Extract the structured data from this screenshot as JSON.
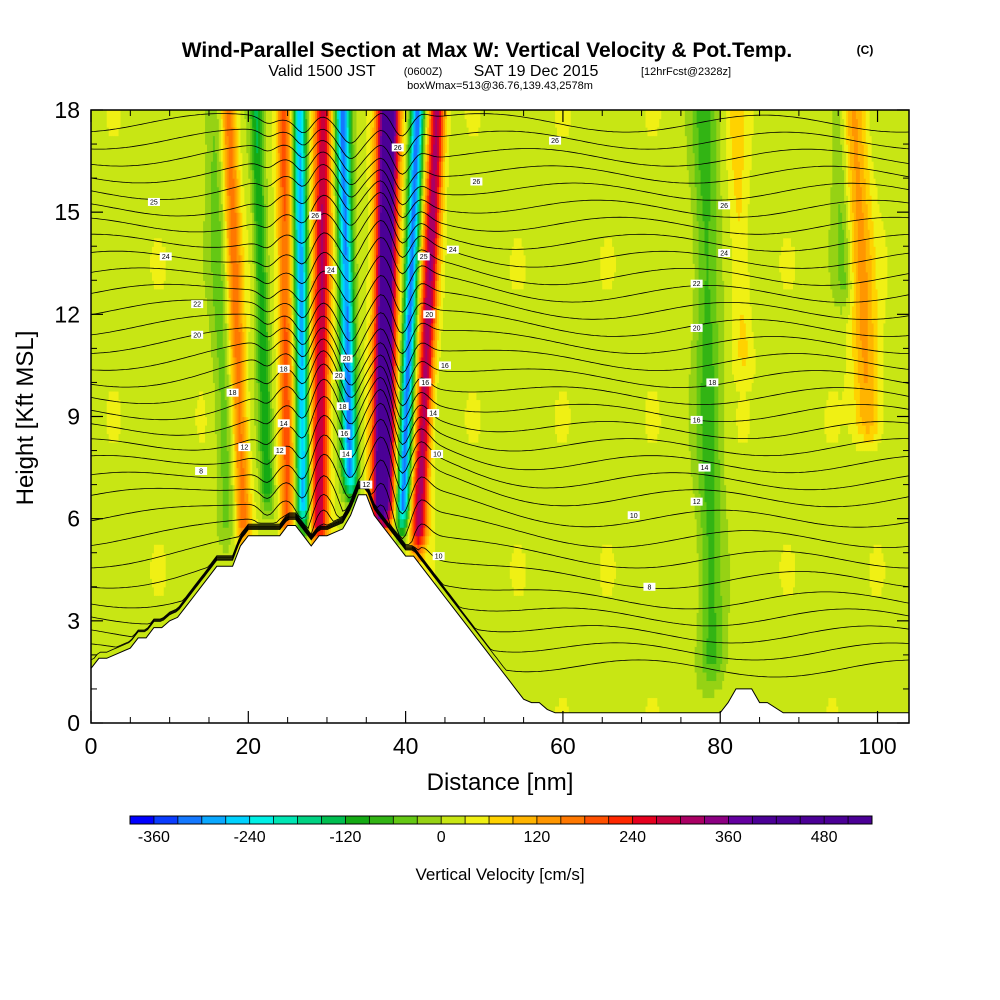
{
  "chart_data": {
    "type": "heatmap",
    "title": "Wind-Parallel Section at Max W: Vertical Velocity & Pot.Temp.",
    "title_mark": "(C)",
    "subtitle": {
      "valid": "Valid 1500 JST",
      "utc": "(0600Z)",
      "date": "SAT 19 Dec 2015",
      "fcst": "[12hrFcst@2328z]"
    },
    "box_info": "boxWmax=513@36.76,139.43,2578m",
    "xlabel": "Distance [nm]",
    "ylabel": "Height [Kft MSL]",
    "xlim": [
      0,
      104
    ],
    "ylim": [
      0,
      18
    ],
    "x_ticks": [
      0,
      20,
      40,
      60,
      80,
      100
    ],
    "y_ticks": [
      0,
      3,
      6,
      9,
      12,
      15,
      18
    ],
    "colorbar": {
      "label": "Vertical Velocity [cm/s]",
      "min": -390,
      "max": 540,
      "step": 30,
      "tick_values": [
        -360,
        -240,
        -120,
        0,
        120,
        240,
        360,
        480
      ],
      "tick_labels": [
        "-360",
        "-240",
        "-120",
        "0",
        "120",
        "240",
        "360",
        "480"
      ],
      "colors": [
        "#0000ff",
        "#0a3cff",
        "#1478ff",
        "#0aa8ff",
        "#00d2ff",
        "#00f0e6",
        "#00e6b4",
        "#00d282",
        "#00be50",
        "#14aa14",
        "#32b414",
        "#64c814",
        "#96d214",
        "#c8e614",
        "#f0f014",
        "#ffd200",
        "#ffb400",
        "#ff9600",
        "#ff7800",
        "#ff5000",
        "#ff2800",
        "#e6001e",
        "#c8003c",
        "#aa0064",
        "#8c0082",
        "#6400a0",
        "#4b0096"
      ]
    },
    "terrain_kft": {
      "x": [
        0,
        1,
        2,
        5,
        6,
        7,
        8,
        9,
        10,
        11,
        12,
        13,
        14,
        15,
        16,
        17,
        18,
        19,
        20,
        21,
        22,
        23,
        24,
        25,
        26,
        27,
        28,
        29,
        30,
        31,
        32,
        33,
        34,
        35,
        36,
        37,
        38,
        39,
        40,
        41,
        42,
        43,
        44,
        45,
        46,
        47,
        48,
        49,
        50,
        51,
        52,
        53,
        54,
        55,
        56,
        57,
        58,
        59,
        60,
        61,
        70,
        78,
        80,
        81,
        82,
        83,
        84,
        85,
        86,
        88,
        90,
        95,
        100,
        104
      ],
      "h": [
        1.6,
        1.9,
        1.9,
        2.2,
        2.5,
        2.5,
        2.8,
        2.8,
        3.0,
        3.1,
        3.4,
        3.7,
        4.0,
        4.3,
        4.6,
        4.6,
        4.6,
        5.2,
        5.5,
        5.5,
        5.5,
        5.5,
        5.5,
        5.8,
        5.8,
        5.5,
        5.2,
        5.5,
        5.5,
        5.6,
        5.7,
        6.1,
        6.7,
        6.7,
        6.1,
        5.8,
        5.5,
        5.2,
        4.9,
        4.9,
        4.6,
        4.3,
        4.0,
        3.7,
        3.4,
        3.1,
        2.8,
        2.5,
        2.2,
        1.9,
        1.6,
        1.3,
        1.0,
        0.7,
        0.6,
        0.6,
        0.4,
        0.3,
        0.3,
        0.3,
        0.3,
        0.3,
        0.3,
        0.6,
        1.0,
        1.0,
        1.0,
        0.6,
        0.6,
        0.3,
        0.3,
        0.3,
        0.3,
        0.3
      ]
    },
    "w_features": [
      {
        "x": 37.0,
        "w": 1.3,
        "amp": 520,
        "ylo": 5.5,
        "xtop": 37.8
      },
      {
        "x": 41.5,
        "w": 1.0,
        "amp": 300,
        "ylo": 4.8,
        "xtop": 44.0
      },
      {
        "x": 29.0,
        "w": 1.1,
        "amp": 280,
        "ylo": 5.0,
        "xtop": 29.5
      },
      {
        "x": 25.0,
        "w": 0.9,
        "amp": 170,
        "ylo": 5.0,
        "xtop": 24.5
      },
      {
        "x": 19.5,
        "w": 1.0,
        "amp": 150,
        "ylo": 5.0,
        "xtop": 17.5
      },
      {
        "x": 33.0,
        "w": 0.9,
        "amp": -330,
        "ylo": 6.5,
        "xtop": 32.0
      },
      {
        "x": 39.5,
        "w": 0.8,
        "amp": -340,
        "ylo": 5.5,
        "xtop": 41.5
      },
      {
        "x": 27.0,
        "w": 0.8,
        "amp": -300,
        "ylo": 5.5,
        "xtop": 26.5
      },
      {
        "x": 22.5,
        "w": 0.8,
        "amp": -130,
        "ylo": 6.0,
        "xtop": 21.0
      },
      {
        "x": 17.5,
        "w": 1.2,
        "amp": -60,
        "ylo": 5.0,
        "xtop": 15.5
      },
      {
        "x": 79.0,
        "w": 1.6,
        "amp": -90,
        "ylo": 1.0,
        "xtop": 78.0
      },
      {
        "x": 83.0,
        "w": 1.2,
        "amp": 50,
        "ylo": 10.0,
        "xtop": 82.0
      },
      {
        "x": 99.0,
        "w": 1.6,
        "amp": 110,
        "ylo": 8.0,
        "xtop": 97.0
      },
      {
        "x": 96.0,
        "w": 1.2,
        "amp": -60,
        "ylo": 12.0,
        "xtop": 95.0
      }
    ],
    "theta_contours": {
      "base_levels_kft": [
        1.6,
        2.1,
        2.6,
        3.1,
        3.6,
        4.2,
        4.8,
        5.4,
        6.0,
        6.6,
        7.1,
        7.6,
        8.1,
        8.6,
        9.1,
        9.6,
        10.1,
        10.6,
        11.1,
        11.6,
        12.1,
        12.6,
        13.1,
        13.6,
        14.1,
        14.6,
        15.1,
        15.6,
        16.1,
        16.6,
        17.1,
        17.6
      ],
      "labels": [
        {
          "text": "26",
          "x": 39,
          "y": 16.9
        },
        {
          "text": "26",
          "x": 59,
          "y": 17.1
        },
        {
          "text": "25",
          "x": 8,
          "y": 15.3
        },
        {
          "text": "24",
          "x": 9.5,
          "y": 13.7
        },
        {
          "text": "22",
          "x": 13.5,
          "y": 12.3
        },
        {
          "text": "20",
          "x": 13.5,
          "y": 11.4
        },
        {
          "text": "18",
          "x": 18,
          "y": 9.7
        },
        {
          "text": "12",
          "x": 19.5,
          "y": 8.1
        },
        {
          "text": "8",
          "x": 14,
          "y": 7.4
        },
        {
          "text": "18",
          "x": 24.5,
          "y": 10.4
        },
        {
          "text": "14",
          "x": 24.5,
          "y": 8.8
        },
        {
          "text": "12",
          "x": 24,
          "y": 8.0
        },
        {
          "text": "26",
          "x": 28.5,
          "y": 14.9
        },
        {
          "text": "24",
          "x": 30.5,
          "y": 13.3
        },
        {
          "text": "20",
          "x": 32.5,
          "y": 10.7
        },
        {
          "text": "20",
          "x": 31.5,
          "y": 10.2
        },
        {
          "text": "18",
          "x": 32,
          "y": 9.3
        },
        {
          "text": "16",
          "x": 32.2,
          "y": 8.5
        },
        {
          "text": "14",
          "x": 32.4,
          "y": 7.9
        },
        {
          "text": "12",
          "x": 35,
          "y": 7.0
        },
        {
          "text": "25",
          "x": 42.3,
          "y": 13.7
        },
        {
          "text": "20",
          "x": 43,
          "y": 12.0
        },
        {
          "text": "16",
          "x": 42.5,
          "y": 10.0
        },
        {
          "text": "14",
          "x": 43.5,
          "y": 9.1
        },
        {
          "text": "10",
          "x": 44,
          "y": 7.9
        },
        {
          "text": "16",
          "x": 45,
          "y": 10.5
        },
        {
          "text": "24",
          "x": 46,
          "y": 13.9
        },
        {
          "text": "10",
          "x": 44.2,
          "y": 4.9
        },
        {
          "text": "26",
          "x": 49,
          "y": 15.9
        },
        {
          "text": "26",
          "x": 80.5,
          "y": 15.2
        },
        {
          "text": "24",
          "x": 80.5,
          "y": 13.8
        },
        {
          "text": "22",
          "x": 77,
          "y": 12.9
        },
        {
          "text": "20",
          "x": 77,
          "y": 11.6
        },
        {
          "text": "18",
          "x": 79,
          "y": 10.0
        },
        {
          "text": "16",
          "x": 77,
          "y": 8.9
        },
        {
          "text": "14",
          "x": 78,
          "y": 7.5
        },
        {
          "text": "12",
          "x": 77,
          "y": 6.5
        },
        {
          "text": "10",
          "x": 69,
          "y": 6.1
        },
        {
          "text": "8",
          "x": 71,
          "y": 4.0
        }
      ]
    }
  }
}
